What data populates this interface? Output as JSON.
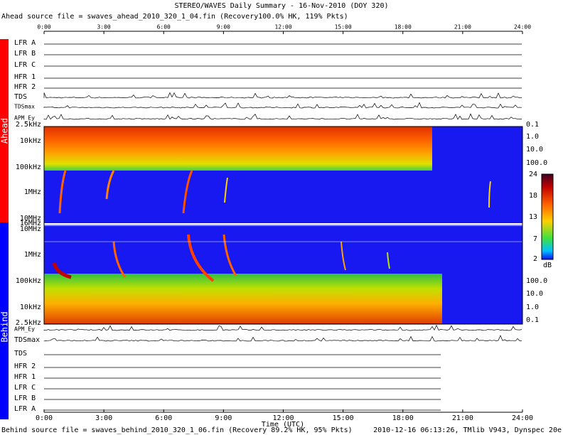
{
  "title": "STEREO/WAVES Daily Summary - 16-Nov-2010 (DOY 320)",
  "ahead_source": "Ahead source file = swaves_ahead_2010_320_1_04.fin (Recovery100.0% HK, 119% Pkts)",
  "behind_source": "Behind source file = swaves_behind_2010_320_1_06.fin (Recovery 89.2% HK, 95% Pkts)",
  "footer_right": "2010-12-16 06:13:26, TMlib V943, Dynspec 20e",
  "spacecraft": [
    "Ahead",
    "Behind"
  ],
  "time_ticks": [
    "0:00",
    "3:00",
    "6:00",
    "9:00",
    "12:00",
    "15:00",
    "18:00",
    "21:00",
    "24:00"
  ],
  "time_axis_label": "Time (UTC)",
  "ahead_panels": [
    "LFR A",
    "LFR B",
    "LFR C",
    "HFR 1",
    "HFR 2",
    "TDS",
    "TDSmax",
    "APM_Ey"
  ],
  "behind_panels": [
    "APM_Ey",
    "TDSmax",
    "TDS",
    "HFR 2",
    "HFR 1",
    "LFR C",
    "LFR B",
    "LFR A"
  ],
  "ahead_freq_labels": [
    "2.5kHz",
    "10kHz",
    "100kHz",
    "1MHz",
    "10MHz",
    "16MHz"
  ],
  "behind_freq_labels": [
    "10MHz",
    "1MHz",
    "100kHz",
    "10kHz",
    "2.5kHz"
  ],
  "ahead_right_labels": [
    "0.1",
    "1.0",
    "10.0",
    "100.0"
  ],
  "behind_right_labels": [
    "100.0",
    "10.0",
    "1.0",
    "0.1"
  ],
  "colorbar_labels": [
    "24",
    "18",
    "13",
    "7",
    "2"
  ],
  "colorbar_unit": "dB"
}
